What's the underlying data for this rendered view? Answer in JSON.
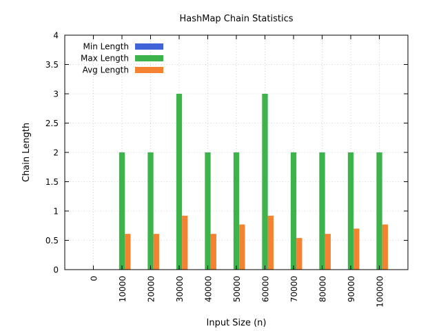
{
  "chart_data": {
    "type": "bar",
    "title": "HashMap Chain Statistics",
    "xlabel": "Input Size (n)",
    "ylabel": "Chain Length",
    "ylim": [
      0,
      4
    ],
    "yticks": [
      "0",
      "0.5",
      "1",
      "1.5",
      "2",
      "2.5",
      "3",
      "3.5",
      "4"
    ],
    "grid": true,
    "legend_position": "top-left",
    "categories": [
      "0",
      "10000",
      "20000",
      "30000",
      "40000",
      "50000",
      "60000",
      "70000",
      "80000",
      "90000",
      "100000"
    ],
    "series": [
      {
        "name": "Min Length",
        "color": "#4063d8",
        "values": [
          0,
          0,
          0,
          0,
          0,
          0,
          0,
          0,
          0,
          0,
          0
        ]
      },
      {
        "name": "Max Length",
        "color": "#3cb44b",
        "values": [
          0,
          2,
          2,
          3,
          2,
          2,
          3,
          2,
          2,
          2,
          2
        ]
      },
      {
        "name": "Avg Length",
        "color": "#f58231",
        "values": [
          0,
          0.61,
          0.61,
          0.92,
          0.61,
          0.77,
          0.92,
          0.54,
          0.61,
          0.7,
          0.77
        ]
      }
    ]
  }
}
